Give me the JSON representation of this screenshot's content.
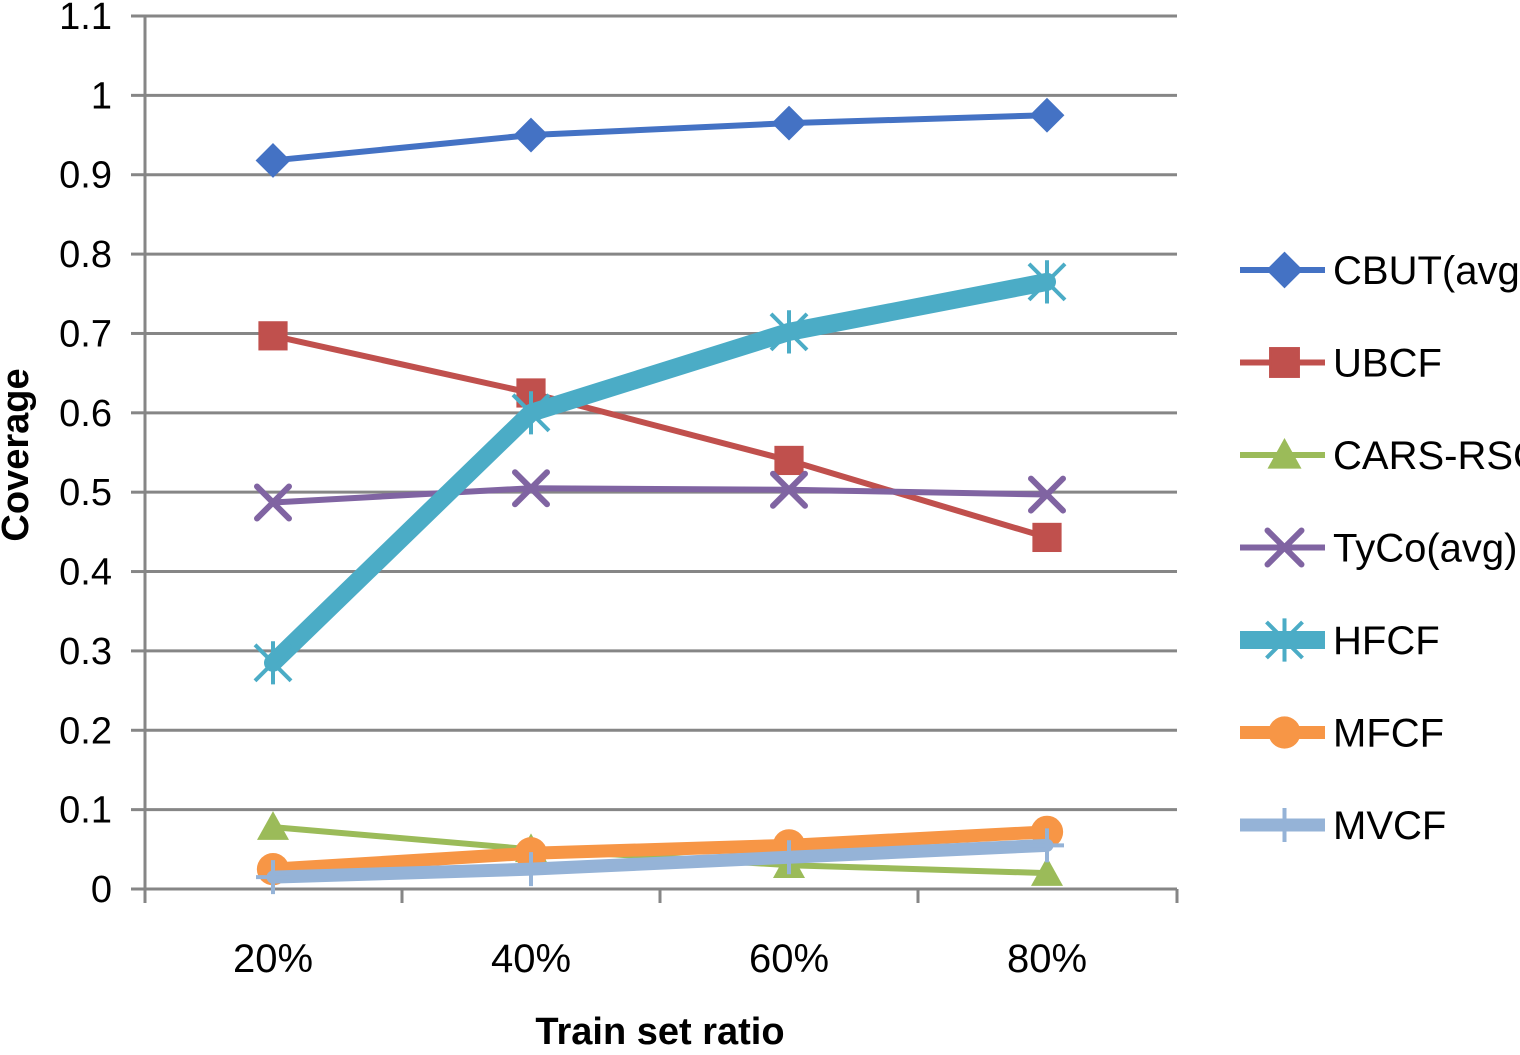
{
  "chart_data": {
    "type": "line",
    "title": "",
    "xlabel": "Train set ratio",
    "ylabel": "Coverage",
    "categories": [
      "20%",
      "40%",
      "60%",
      "80%"
    ],
    "ylim": [
      0,
      1.1
    ],
    "yticks": [
      "0",
      "0.1",
      "0.2",
      "0.3",
      "0.4",
      "0.5",
      "0.6",
      "0.7",
      "0.8",
      "0.9",
      "1",
      "1.1"
    ],
    "grid": true,
    "legend_position": "right",
    "series": [
      {
        "name": "CBUT(avg)",
        "values": [
          0.918,
          0.95,
          0.965,
          0.975
        ],
        "color": "#4472C4",
        "marker": "diamond",
        "emphasis": "normal"
      },
      {
        "name": "UBCF",
        "values": [
          0.697,
          0.625,
          0.54,
          0.443
        ],
        "color": "#C0504D",
        "marker": "square",
        "emphasis": "normal"
      },
      {
        "name": "CARS-RSCF",
        "values": [
          0.078,
          0.05,
          0.03,
          0.02
        ],
        "color": "#9BBB59",
        "marker": "triangle",
        "emphasis": "normal"
      },
      {
        "name": "TyCo(avg)",
        "values": [
          0.487,
          0.505,
          0.503,
          0.497
        ],
        "color": "#8064A2",
        "marker": "x",
        "emphasis": "normal"
      },
      {
        "name": "HFCF",
        "values": [
          0.285,
          0.6,
          0.702,
          0.765
        ],
        "color": "#4BACC6",
        "marker": "star",
        "emphasis": "thick"
      },
      {
        "name": "MFCF",
        "values": [
          0.025,
          0.045,
          0.055,
          0.072
        ],
        "color": "#F79646",
        "marker": "circle",
        "emphasis": "medium"
      },
      {
        "name": "MVCF",
        "values": [
          0.015,
          0.025,
          0.04,
          0.055
        ],
        "color": "#95B3D7",
        "marker": "plus",
        "emphasis": "medium"
      }
    ]
  }
}
